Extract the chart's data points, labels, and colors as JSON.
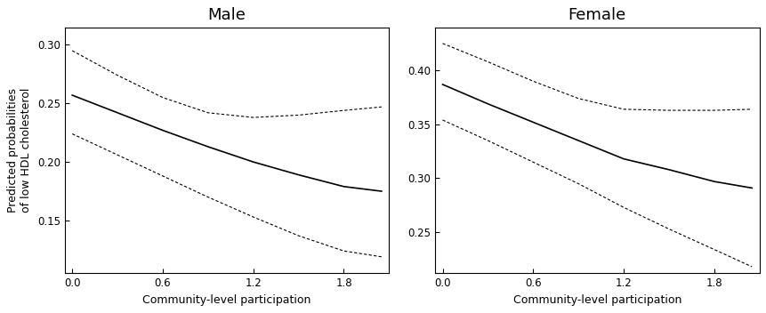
{
  "male": {
    "title": "Male",
    "x": [
      0.0,
      0.3,
      0.6,
      0.9,
      1.2,
      1.5,
      1.8,
      2.05
    ],
    "solid": [
      0.257,
      0.242,
      0.227,
      0.213,
      0.2,
      0.189,
      0.179,
      0.175
    ],
    "upper_ci": [
      0.295,
      0.274,
      0.255,
      0.242,
      0.238,
      0.24,
      0.244,
      0.247
    ],
    "lower_ci": [
      0.224,
      0.206,
      0.188,
      0.17,
      0.153,
      0.137,
      0.124,
      0.119
    ],
    "ylim": [
      0.105,
      0.315
    ],
    "yticks": [
      0.15,
      0.2,
      0.25,
      0.3
    ],
    "xticks": [
      0.0,
      0.6,
      1.2,
      1.8
    ],
    "xlabel": "Community-level participation",
    "ylabel": "Predicted probabilities\nof low HDL cholesterol"
  },
  "female": {
    "title": "Female",
    "x": [
      0.0,
      0.3,
      0.6,
      0.9,
      1.2,
      1.5,
      1.8,
      2.05
    ],
    "solid": [
      0.387,
      0.369,
      0.352,
      0.335,
      0.318,
      0.308,
      0.297,
      0.291
    ],
    "upper_ci": [
      0.425,
      0.408,
      0.39,
      0.374,
      0.364,
      0.363,
      0.363,
      0.364
    ],
    "lower_ci": [
      0.354,
      0.335,
      0.315,
      0.295,
      0.273,
      0.253,
      0.234,
      0.218
    ],
    "ylim": [
      0.212,
      0.44
    ],
    "yticks": [
      0.25,
      0.3,
      0.35,
      0.4
    ],
    "xticks": [
      0.0,
      0.6,
      1.2,
      1.8
    ],
    "xlabel": "Community-level participation",
    "ylabel": ""
  },
  "line_color": "#000000",
  "bg_color": "#ffffff",
  "title_fontsize": 13,
  "label_fontsize": 9,
  "tick_fontsize": 8.5
}
